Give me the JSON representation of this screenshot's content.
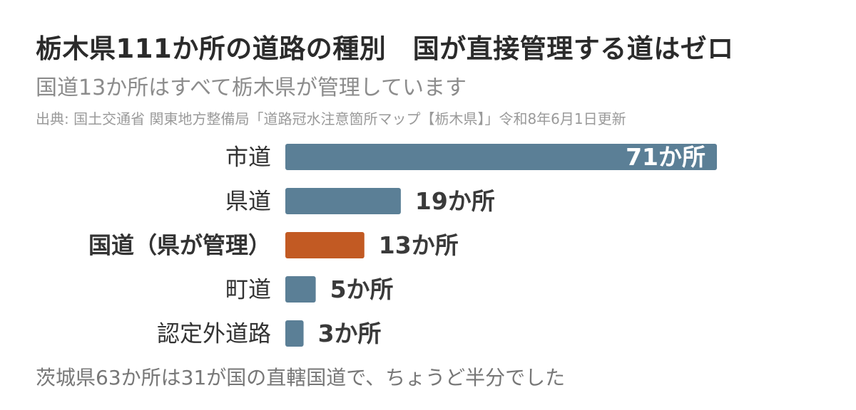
{
  "chart_data": {
    "type": "bar",
    "orientation": "horizontal",
    "title": "栃木県111か所の道路の種別　国が直接管理する道はゼロ",
    "subtitle": "国道13か所はすべて栃木県が管理しています",
    "source": "出典: 国土交通省 関東地方整備局「道路冠水注意箇所マップ【栃木県】」令和8年6月1日更新",
    "footnote": "茨城県63か所は31が国の直轄国道で、ちょうど半分でした",
    "categories": [
      "市道",
      "県道",
      "国道（県が管理）",
      "町道",
      "認定外道路"
    ],
    "values": [
      71,
      19,
      13,
      5,
      3
    ],
    "value_labels": [
      "71か所",
      "19か所",
      "13か所",
      "5か所",
      "3か所"
    ],
    "highlight_index": 2,
    "colors": {
      "default": "#5b7f96",
      "highlight": "#c25a23",
      "label": "#333333",
      "value_text": "#3a3a3a",
      "value_text_inside": "#ffffff"
    },
    "xlim": [
      0,
      71
    ],
    "grid": false,
    "legend": "none"
  }
}
